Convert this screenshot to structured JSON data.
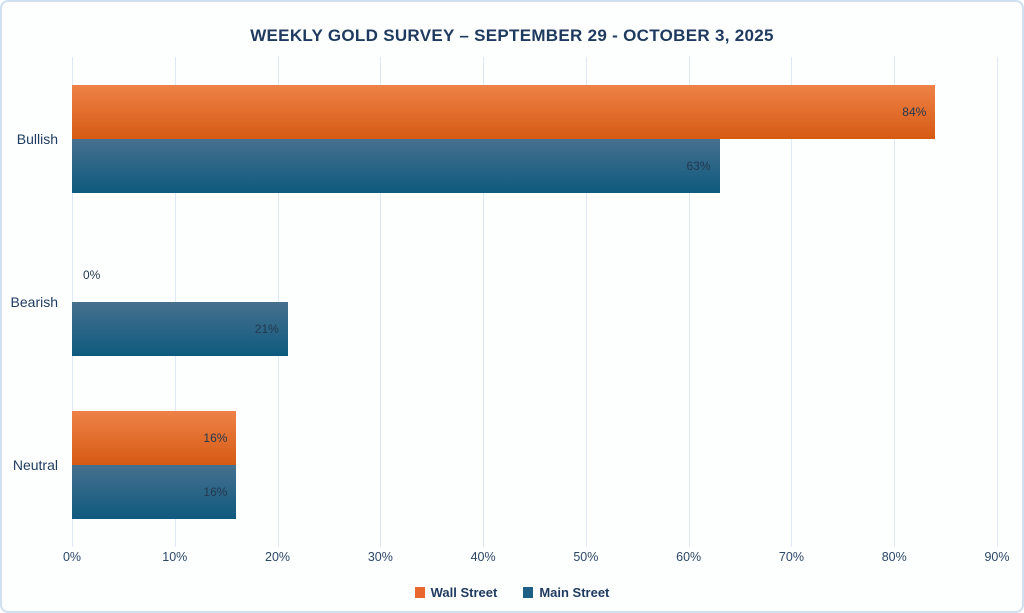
{
  "chart_data": {
    "type": "bar",
    "orientation": "horizontal",
    "title": "WEEKLY GOLD SURVEY – SEPTEMBER 29 - OCTOBER 3, 2025",
    "categories": [
      "Bullish",
      "Bearish",
      "Neutral"
    ],
    "series": [
      {
        "name": "Wall Street",
        "values": [
          84,
          0,
          16
        ],
        "data_labels": [
          "84%",
          "0%",
          "16%"
        ],
        "color_top": "#ee8247",
        "color_bottom": "#d65a13",
        "legend_color": "#e8672f"
      },
      {
        "name": "Main Street",
        "values": [
          63,
          21,
          16
        ],
        "data_labels": [
          "63%",
          "21%",
          "16%"
        ],
        "color_top": "#47708f",
        "color_bottom": "#0e5a7e",
        "legend_color": "#1e5f86"
      }
    ],
    "xlabel": "",
    "ylabel": "",
    "xlim": [
      0,
      90
    ],
    "x_ticks": [
      0,
      10,
      20,
      30,
      40,
      50,
      60,
      70,
      80,
      90
    ],
    "x_tick_labels": [
      "0%",
      "10%",
      "20%",
      "30%",
      "40%",
      "50%",
      "60%",
      "70%",
      "80%",
      "90%"
    ],
    "grid": "vertical",
    "legend_position": "bottom"
  },
  "colors": {
    "background": "#fdfefe",
    "frame_border": "#cfe0f2",
    "gridline": "#dfe9f6",
    "text": "#1d3a5f"
  }
}
